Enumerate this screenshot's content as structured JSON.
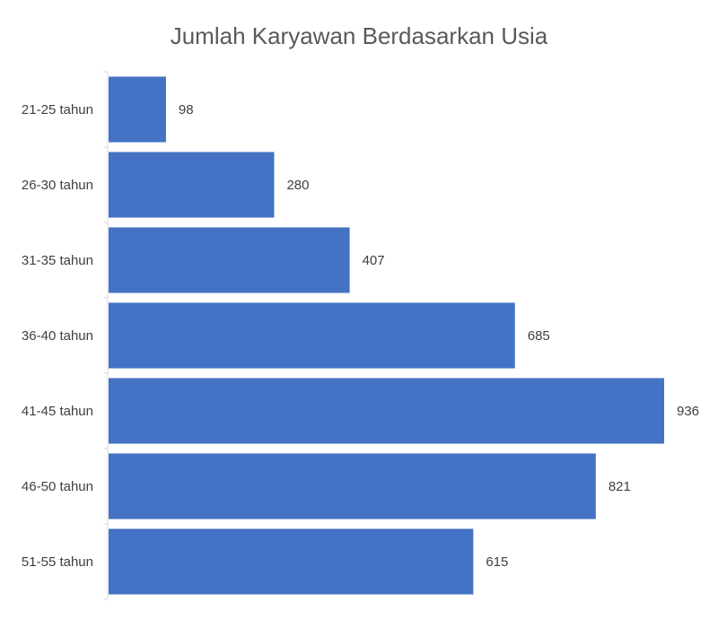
{
  "chart_data": {
    "type": "bar",
    "orientation": "horizontal",
    "title": "Jumlah Karyawan Berdasarkan Usia",
    "categories": [
      "21-25 tahun",
      "26-30 tahun",
      "31-35 tahun",
      "36-40 tahun",
      "41-45 tahun",
      "46-50 tahun",
      "51-55 tahun"
    ],
    "values": [
      98,
      280,
      407,
      685,
      936,
      821,
      615
    ],
    "xlim": [
      0,
      936
    ],
    "data_labels": true,
    "grid": false,
    "legend": "none",
    "bar_color": "#4472C4",
    "axis_color": "#D9D9D9"
  }
}
